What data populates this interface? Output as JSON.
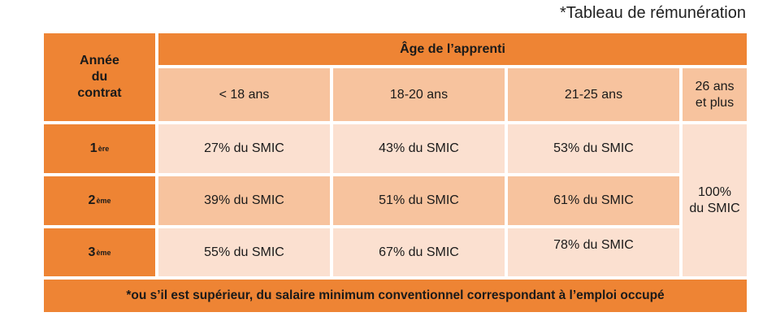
{
  "caption": "*Tableau de rémunération",
  "table": {
    "year_header": "Année\ndu\ncontrat",
    "age_header": "Âge de l’apprenti",
    "age_columns": [
      "< 18 ans",
      "18-20 ans",
      "21-25 ans",
      "26 ans\net plus"
    ],
    "rows": [
      {
        "year_num": "1",
        "year_sup": "ère",
        "values": [
          "27% du SMIC",
          "43% du SMIC",
          "53% du SMIC"
        ]
      },
      {
        "year_num": "2",
        "year_sup": "ème",
        "values": [
          "39% du SMIC",
          "51% du SMIC",
          "61% du SMIC"
        ]
      },
      {
        "year_num": "3",
        "year_sup": "ème",
        "values": [
          "55% du SMIC",
          "67% du SMIC",
          "78% du SMIC"
        ]
      }
    ],
    "last_column_merged": "100%\ndu SMIC",
    "footnote": "*ou s’il est supérieur, du salaire minimum conventionnel correspondant à l’emploi occupé"
  },
  "colors": {
    "orange": "#ee8434",
    "mid": "#f7c39e",
    "light": "#fbe0d0"
  }
}
